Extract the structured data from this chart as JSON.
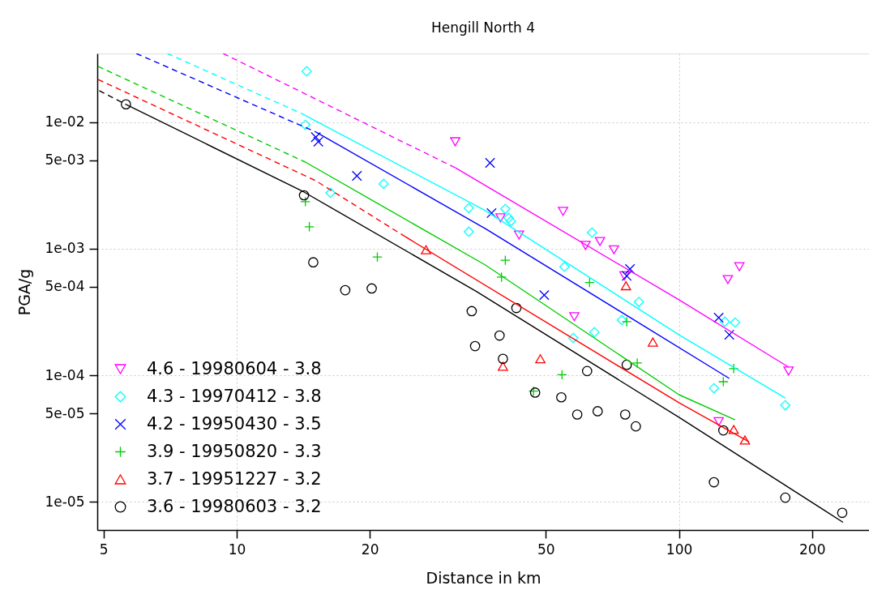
{
  "chart_data": {
    "type": "scatter",
    "title": "Hengill North 4",
    "xlabel": "Distance in km",
    "ylabel": "PGA/g",
    "log": "xy",
    "grid": true,
    "legend": "bottom left",
    "xlim": [
      4.84,
      269
    ],
    "xticks": [
      5,
      10,
      20,
      50,
      100,
      200
    ],
    "ylim": [
      6e-06,
      0.0348
    ],
    "yticks": [
      {
        "value": 1e-05,
        "label": "1e-05"
      },
      {
        "value": 5e-05,
        "label": "5e-05"
      },
      {
        "value": 0.0001,
        "label": "1e-04"
      },
      {
        "value": 0.0005,
        "label": "5e-04"
      },
      {
        "value": 0.001,
        "label": "1e-03"
      },
      {
        "value": 0.005,
        "label": "5e-03"
      },
      {
        "value": 0.01,
        "label": "1e-02"
      }
    ],
    "series": [
      {
        "name": "4.6 - 19980604 - 3.8",
        "type": "scatter",
        "marker": "triangle-down",
        "color": "#ff00ff",
        "x": [
          31.2,
          54.7,
          39.5,
          43.5,
          61.5,
          66.3,
          71.3,
          75.3,
          137,
          129,
          58.0,
          123,
          177
        ],
        "values": [
          0.00699,
          0.00197,
          0.00175,
          0.00128,
          0.00106,
          0.00114,
          0.00098,
          0.00061,
          0.00072,
          0.00057,
          0.00029,
          4.3e-05,
          0.000108
        ]
      },
      {
        "name": "4.3 - 19970412 - 3.8",
        "type": "scatter",
        "marker": "diamond",
        "color": "#00ffff",
        "x": [
          14.4,
          14.3,
          21.5,
          16.3,
          33.5,
          33.5,
          40.5,
          41.2,
          41.7,
          63.6,
          55.1,
          81.2,
          74.3,
          57.7,
          64.4,
          120,
          127,
          134,
          174
        ],
        "values": [
          0.0252,
          0.0095,
          0.00325,
          0.00276,
          0.00209,
          0.00136,
          0.00206,
          0.00175,
          0.00165,
          0.00134,
          0.00072,
          0.00038,
          0.000273,
          0.000197,
          0.000219,
          7.9e-05,
          0.000265,
          0.000261,
          5.8e-05
        ]
      },
      {
        "name": "4.2 - 19950430 - 3.5",
        "type": "scatter",
        "marker": "x",
        "color": "#0000ff",
        "x": [
          15.1,
          15.3,
          18.7,
          37.4,
          37.7,
          77.5,
          76.2,
          49.6,
          123,
          130
        ],
        "values": [
          0.0076,
          0.007,
          0.00376,
          0.00476,
          0.00191,
          0.00069,
          0.00061,
          0.00043,
          0.000285,
          0.000209
        ]
      },
      {
        "name": "3.9 - 19950820 - 3.3",
        "type": "scatter",
        "marker": "cross",
        "color": "#00cc00",
        "x": [
          14.3,
          14.6,
          20.8,
          40.5,
          39.7,
          62.8,
          76.2,
          80.5,
          54.4,
          46.9,
          133,
          126
        ],
        "values": [
          0.00235,
          0.00149,
          0.00086,
          0.00081,
          0.000596,
          0.00054,
          0.000265,
          0.000125,
          0.000101,
          7.5e-05,
          0.000113,
          8.9e-05
        ]
      },
      {
        "name": "3.7 - 19951227 - 3.2",
        "type": "scatter",
        "marker": "triangle",
        "color": "#ff0000",
        "x": [
          26.8,
          75.9,
          87.3,
          48.6,
          40.0,
          133,
          141
        ],
        "values": [
          0.00098,
          0.00051,
          0.000183,
          0.000135,
          0.000118,
          3.73e-05,
          3.08e-05
        ]
      },
      {
        "name": "3.6 - 19980603 - 3.2",
        "type": "scatter",
        "marker": "circle",
        "color": "#000000",
        "x": [
          5.62,
          14.2,
          14.9,
          17.6,
          20.2,
          34.0,
          34.6,
          42.9,
          39.3,
          40.0,
          62.0,
          76.2,
          47.3,
          54.2,
          58.9,
          65.5,
          75.6,
          79.9,
          126,
          120,
          174,
          234
        ],
        "values": [
          0.0138,
          0.00264,
          0.00078,
          0.00047,
          0.000485,
          0.000321,
          0.00017,
          0.00034,
          0.000206,
          0.000135,
          0.000108,
          0.000121,
          7.3e-05,
          6.7e-05,
          4.9e-05,
          5.2e-05,
          4.9e-05,
          3.95e-05,
          3.67e-05,
          1.43e-05,
          1.08e-05,
          8.2e-06
        ]
      },
      {
        "type": "line",
        "line_style": "dashed",
        "color": "#ff00ff",
        "x": [
          9.32,
          31.2
        ],
        "values": [
          0.0348,
          0.00436
        ]
      },
      {
        "type": "line",
        "line_style": "solid",
        "color": "#ff00ff",
        "x": [
          31.2,
          100,
          177
        ],
        "values": [
          0.00436,
          0.000395,
          0.000116
        ]
      },
      {
        "type": "line",
        "line_style": "dashed",
        "color": "#00ffff",
        "x": [
          6.97,
          14.0
        ],
        "values": [
          0.0348,
          0.0117
        ]
      },
      {
        "type": "line",
        "line_style": "solid",
        "color": "#00ffff",
        "x": [
          14.0,
          36.5,
          100,
          174
        ],
        "values": [
          0.0117,
          0.002,
          0.000209,
          6.62e-05
        ]
      },
      {
        "type": "line",
        "line_style": "dashed",
        "color": "#0000ff",
        "x": [
          5.93,
          15.1
        ],
        "values": [
          0.0348,
          0.00834
        ]
      },
      {
        "type": "line",
        "line_style": "solid",
        "color": "#0000ff",
        "x": [
          15.1,
          36.5,
          130
        ],
        "values": [
          0.00834,
          0.00144,
          9.44e-05
        ]
      },
      {
        "type": "line",
        "line_style": "dashed",
        "color": "#00cc00",
        "x": [
          4.86,
          14.3
        ],
        "values": [
          0.0275,
          0.00483
        ]
      },
      {
        "type": "line",
        "line_style": "solid",
        "color": "#00cc00",
        "x": [
          14.3,
          36.5,
          100,
          134
        ],
        "values": [
          0.00483,
          0.000743,
          7.03e-05,
          4.45e-05
        ]
      },
      {
        "type": "line",
        "line_style": "dashed",
        "color": "#ff0000",
        "x": [
          4.86,
          15.1,
          24
        ],
        "values": [
          0.0217,
          0.00344,
          0.00125
        ]
      },
      {
        "type": "line",
        "line_style": "solid",
        "color": "#ff0000",
        "x": [
          24,
          100,
          144
        ],
        "values": [
          0.00125,
          6.07e-05,
          2.99e-05
        ]
      },
      {
        "type": "line",
        "line_style": "dashed",
        "color": "#000000",
        "x": [
          4.89,
          5.62
        ],
        "values": [
          0.0177,
          0.0138
        ]
      },
      {
        "type": "line",
        "line_style": "solid",
        "color": "#000000",
        "x": [
          5.62,
          14.2,
          34.9,
          100,
          235
        ],
        "values": [
          0.0138,
          0.0028,
          0.000458,
          4.66e-05,
          6.9e-06
        ]
      }
    ]
  }
}
